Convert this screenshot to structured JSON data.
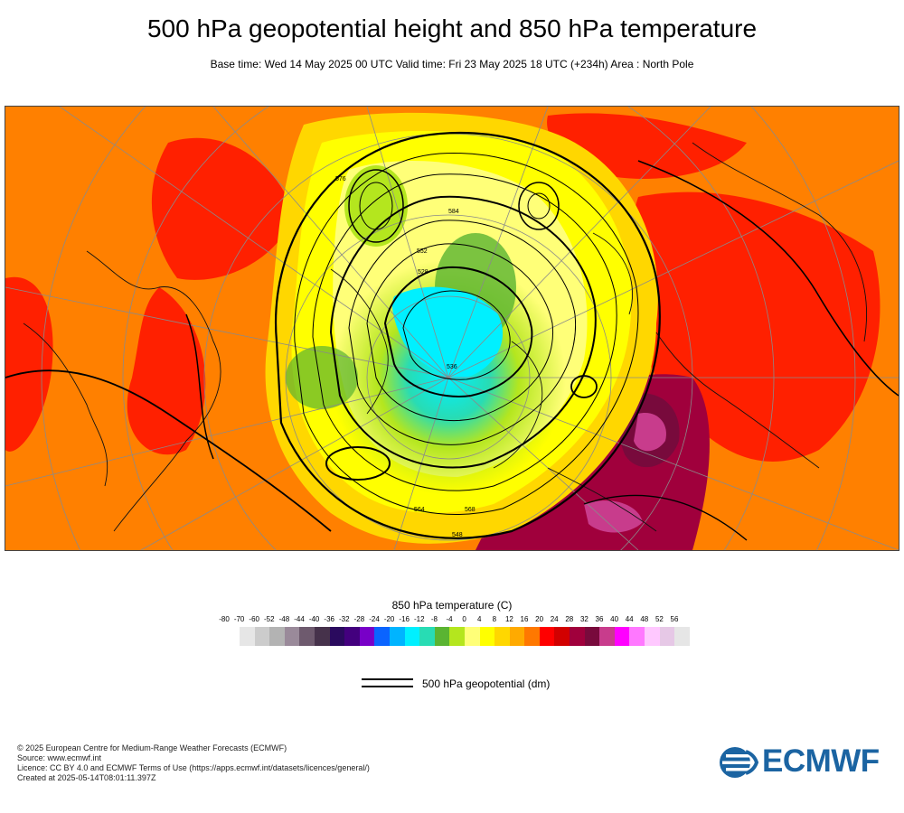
{
  "header": {
    "title": "500 hPa geopotential height and 850 hPa temperature",
    "subtitle": "Base time: Wed 14 May 2025 00 UTC Valid time: Fri 23 May 2025 18 UTC (+234h) Area : North Pole"
  },
  "map": {
    "contour_labels": [
      "576",
      "584",
      "552",
      "564",
      "568",
      "528",
      "536",
      "548"
    ],
    "colors": {
      "background": "#ff8000",
      "frame": "#444444",
      "contour": "#000000",
      "graticule": "#8a8a8a"
    }
  },
  "legend": {
    "title": "850 hPa temperature (C)",
    "ticks": [
      "-80",
      "-70",
      "-60",
      "-52",
      "-48",
      "-44",
      "-40",
      "-36",
      "-32",
      "-28",
      "-24",
      "-20",
      "-16",
      "-12",
      "-8",
      "-4",
      "0",
      "4",
      "8",
      "12",
      "16",
      "20",
      "24",
      "28",
      "32",
      "36",
      "40",
      "44",
      "48",
      "52",
      "56"
    ],
    "colors": [
      "#e6e6e6",
      "#cccccc",
      "#b3b3b3",
      "#9a8a9a",
      "#6e5a6e",
      "#46324b",
      "#2a0a5e",
      "#43007e",
      "#7800c8",
      "#0a64ff",
      "#00b4ff",
      "#00f0ff",
      "#28dcb4",
      "#5ab432",
      "#b4e61e",
      "#ffff78",
      "#ffff00",
      "#ffd700",
      "#ffaa00",
      "#ff7800",
      "#ff0000",
      "#d20000",
      "#a0003c",
      "#780a3c",
      "#c83c8c",
      "#ff00ff",
      "#ff78ff",
      "#ffc8ff",
      "#e6c8e6",
      "#e6e6e6"
    ],
    "contour_label": "500 hPa geopotential (dm)"
  },
  "footer": {
    "lines": [
      "© 2025 European Centre for Medium-Range Weather Forecasts (ECMWF)",
      "Source: www.ecmwf.int",
      "Licence: CC BY 4.0 and ECMWF Terms of Use (https://apps.ecmwf.int/datasets/licences/general/)",
      "Created at 2025-05-14T08:01:11.397Z"
    ]
  },
  "logo": {
    "text": "ECMWF",
    "color": "#1b64a2"
  }
}
